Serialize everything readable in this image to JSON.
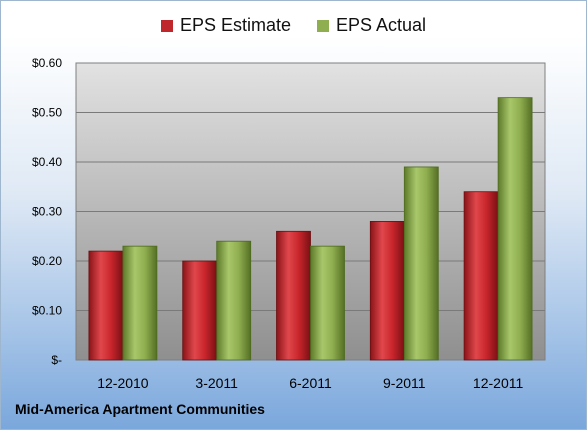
{
  "chart_data": {
    "type": "bar",
    "title": "Mid-America Apartment Communities",
    "categories": [
      "12-2010",
      "3-2011",
      "6-2011",
      "9-2011",
      "12-2011"
    ],
    "series": [
      {
        "name": "EPS Estimate",
        "color": "#c0272d",
        "values": [
          0.22,
          0.2,
          0.26,
          0.28,
          0.34
        ]
      },
      {
        "name": "EPS Actual",
        "color": "#8fae4f",
        "values": [
          0.23,
          0.24,
          0.23,
          0.39,
          0.53
        ]
      }
    ],
    "yticks": [
      "$-",
      "$0.10",
      "$0.20",
      "$0.30",
      "$0.40",
      "$0.50",
      "$0.60"
    ],
    "ylim": [
      0,
      0.6
    ],
    "xlabel": "",
    "ylabel": "",
    "grid": true,
    "legend_position": "top"
  }
}
